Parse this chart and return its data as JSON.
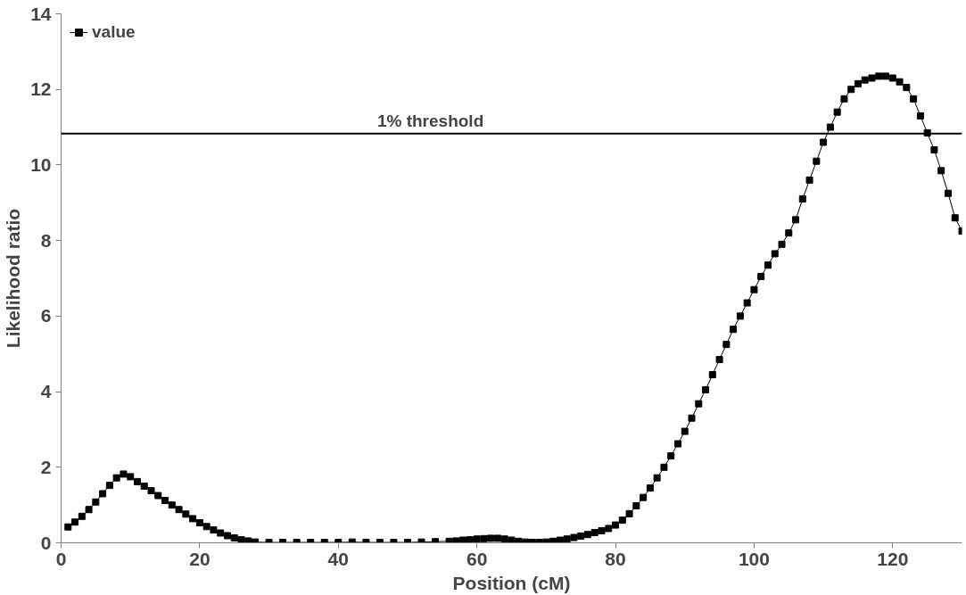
{
  "chart_data": {
    "type": "line",
    "xlabel": "Position (cM)",
    "ylabel": "Likelihood ratio",
    "xlim": [
      0,
      130
    ],
    "ylim": [
      0,
      14
    ],
    "xticks": [
      0,
      20,
      40,
      60,
      80,
      100,
      120
    ],
    "yticks": [
      0,
      2,
      4,
      6,
      8,
      10,
      12,
      14
    ],
    "grid": false,
    "legend": "top left",
    "marker": "square",
    "line_style": "solid",
    "x": [
      1,
      2,
      3,
      4,
      5,
      6,
      7,
      8,
      9,
      10,
      11,
      12,
      13,
      14,
      15,
      16,
      17,
      18,
      19,
      20,
      21,
      22,
      23,
      24,
      25,
      26,
      27,
      28,
      30,
      32,
      34,
      36,
      38,
      40,
      42,
      44,
      46,
      48,
      50,
      52,
      54,
      56,
      57,
      58,
      59,
      60,
      61,
      62,
      63,
      64,
      65,
      66,
      67,
      68,
      69,
      70,
      71,
      72,
      73,
      74,
      75,
      76,
      77,
      78,
      79,
      80,
      81,
      82,
      83,
      84,
      85,
      86,
      87,
      88,
      89,
      90,
      91,
      92,
      93,
      94,
      95,
      96,
      97,
      98,
      99,
      100,
      101,
      102,
      103,
      104,
      105,
      106,
      107,
      108,
      109,
      110,
      111,
      112,
      113,
      114,
      115,
      116,
      117,
      118,
      119,
      120,
      121,
      122,
      123,
      124,
      125,
      126,
      127,
      128,
      129,
      130
    ],
    "series": [
      {
        "name": "value",
        "color": "#000000",
        "values": [
          0.42,
          0.55,
          0.7,
          0.88,
          1.08,
          1.3,
          1.52,
          1.72,
          1.82,
          1.75,
          1.62,
          1.5,
          1.38,
          1.25,
          1.12,
          1.0,
          0.88,
          0.76,
          0.64,
          0.53,
          0.43,
          0.34,
          0.26,
          0.19,
          0.13,
          0.08,
          0.05,
          0.02,
          0.01,
          0.01,
          0.01,
          0.01,
          0.01,
          0.01,
          0.02,
          0.01,
          0.01,
          0.01,
          0.01,
          0.02,
          0.03,
          0.04,
          0.05,
          0.07,
          0.08,
          0.1,
          0.11,
          0.12,
          0.12,
          0.1,
          0.07,
          0.04,
          0.02,
          0.01,
          0.01,
          0.02,
          0.04,
          0.07,
          0.1,
          0.14,
          0.18,
          0.22,
          0.27,
          0.32,
          0.38,
          0.47,
          0.6,
          0.77,
          0.98,
          1.2,
          1.45,
          1.72,
          2.0,
          2.3,
          2.62,
          2.95,
          3.3,
          3.68,
          4.05,
          4.45,
          4.85,
          5.25,
          5.65,
          6.0,
          6.35,
          6.7,
          7.05,
          7.35,
          7.65,
          7.9,
          8.2,
          8.55,
          9.1,
          9.6,
          10.1,
          10.6,
          11.0,
          11.4,
          11.75,
          12.0,
          12.15,
          12.25,
          12.3,
          12.35,
          12.35,
          12.3,
          12.2,
          12.05,
          11.75,
          11.3,
          10.85,
          10.4,
          9.85,
          9.25,
          8.6,
          8.25
        ]
      }
    ],
    "ref_lines": [
      {
        "axis": "y",
        "value": 10.83,
        "label": "1% threshold",
        "color": "#000000",
        "line_style": "solid"
      }
    ]
  }
}
